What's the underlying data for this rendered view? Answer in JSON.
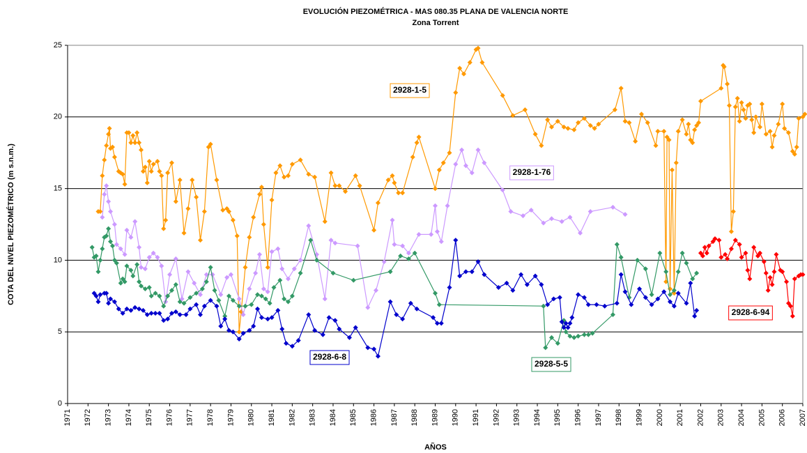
{
  "chart_data": {
    "type": "line",
    "title": "EVOLUCIÓN PIEZOMÉTRICA - MAS 080.35 PLANA DE VALENCIA NORTE",
    "subtitle": "Zona Torrent",
    "x_label": "AÑOS",
    "y_label": "COTA DEL NIVEL PIEZOMÉTRICO (m s.n.m.)",
    "xlim": [
      1971,
      2007
    ],
    "xticks": [
      1971,
      1972,
      1973,
      1974,
      1975,
      1976,
      1977,
      1978,
      1979,
      1980,
      1981,
      1982,
      1983,
      1984,
      1985,
      1986,
      1987,
      1988,
      1989,
      1990,
      1991,
      1992,
      1993,
      1994,
      1995,
      1996,
      1997,
      1998,
      1999,
      2000,
      2001,
      2002,
      2003,
      2004,
      2005,
      2006,
      2007
    ],
    "ylim": [
      0,
      25
    ],
    "yticks": [
      0,
      5,
      10,
      15,
      20,
      25
    ],
    "grid": true,
    "series": [
      {
        "name": "2928-1-5",
        "color": "#ff9900",
        "x": [
          1972.5,
          1972.6,
          1972.7,
          1972.8,
          1972.9,
          1973.0,
          1973.05,
          1973.1,
          1973.2,
          1973.3,
          1973.5,
          1973.6,
          1973.7,
          1973.8,
          1973.9,
          1974.0,
          1974.1,
          1974.2,
          1974.3,
          1974.4,
          1974.5,
          1974.6,
          1974.7,
          1974.8,
          1974.9,
          1975.0,
          1975.1,
          1975.2,
          1975.4,
          1975.5,
          1975.6,
          1975.7,
          1975.8,
          1975.9,
          1976.1,
          1976.3,
          1976.5,
          1976.7,
          1976.9,
          1977.1,
          1977.3,
          1977.5,
          1977.7,
          1977.9,
          1978.0,
          1978.3,
          1978.6,
          1978.8,
          1978.9,
          1979.1,
          1979.3,
          1979.4,
          1979.5,
          1979.7,
          1979.9,
          1980.1,
          1980.4,
          1980.5,
          1980.6,
          1980.8,
          1981.0,
          1981.2,
          1981.4,
          1981.6,
          1981.8,
          1982.0,
          1982.4,
          1982.8,
          1983.1,
          1983.6,
          1983.9,
          1984.1,
          1984.3,
          1984.6,
          1985.1,
          1985.3,
          1986.0,
          1986.2,
          1986.7,
          1986.9,
          1987.0,
          1987.2,
          1987.4,
          1987.9,
          1988.1,
          1988.2,
          1989.0,
          1989.2,
          1989.4,
          1989.7,
          1990.0,
          1990.2,
          1990.4,
          1990.7,
          1991.0,
          1991.1,
          1991.3,
          1992.3,
          1992.8,
          1993.4,
          1993.9,
          1994.2,
          1994.5,
          1994.7,
          1995.0,
          1995.3,
          1995.5,
          1995.8,
          1996.0,
          1996.3,
          1996.6,
          1996.8,
          1997.0,
          1997.8,
          1998.1,
          1998.3,
          1998.5,
          1998.8,
          1999.1,
          1999.4,
          1999.8,
          1999.9,
          2000.2,
          2000.3,
          2000.35,
          2000.45,
          2000.5,
          2000.6,
          2000.7,
          2000.8,
          2000.9,
          2001.1,
          2001.3,
          2001.4,
          2001.5,
          2001.6,
          2001.7,
          2001.8,
          2001.9,
          2002.0,
          2003.0,
          2003.1,
          2003.15,
          2003.3,
          2003.4,
          2003.5,
          2003.6,
          2003.7,
          2003.8,
          2003.9,
          2004.0,
          2004.1,
          2004.2,
          2004.3,
          2004.4,
          2004.5,
          2004.6,
          2004.7,
          2004.9,
          2005.0,
          2005.2,
          2005.4,
          2005.5,
          2005.6,
          2005.8,
          2006.0,
          2006.1,
          2006.3,
          2006.5,
          2006.6,
          2006.7,
          2006.8,
          2007.0,
          2007.1
        ],
        "values": [
          13.4,
          13.4,
          15.9,
          17,
          18,
          18.8,
          19.2,
          17.8,
          17.9,
          17.2,
          16.2,
          16.1,
          16,
          15.3,
          18.9,
          18.9,
          18.2,
          18.7,
          18.2,
          18.9,
          18.2,
          17.7,
          16.2,
          16.5,
          15.4,
          16.9,
          16.2,
          16.7,
          16.9,
          16.2,
          15.9,
          12.2,
          12.8,
          16.1,
          16.8,
          14.1,
          15.6,
          11.9,
          13.6,
          15.6,
          14.4,
          11.4,
          13.4,
          17.9,
          18.1,
          15.6,
          13.5,
          13.6,
          13.4,
          12.8,
          11.7,
          5.0,
          6.4,
          9.5,
          11.6,
          13.0,
          14.6,
          15.1,
          12.5,
          9.5,
          14.2,
          16.1,
          16.6,
          15.8,
          15.9,
          16.7,
          17.0,
          16.0,
          15.8,
          12.7,
          16.1,
          15.2,
          15.2,
          14.8,
          15.9,
          15.2,
          12.1,
          14.0,
          15.6,
          15.9,
          15.4,
          14.7,
          14.7,
          17.2,
          18.2,
          18.6,
          15.0,
          16.3,
          16.8,
          17.5,
          21.7,
          23.4,
          23.0,
          23.8,
          24.7,
          24.8,
          23.8,
          21.5,
          20.1,
          20.5,
          18.8,
          18.0,
          19.8,
          19.3,
          19.7,
          19.3,
          19.2,
          19.1,
          19.6,
          19.9,
          19.4,
          19.2,
          19.5,
          20.5,
          22.0,
          19.7,
          19.6,
          18.3,
          20.2,
          19.6,
          18.0,
          19.0,
          19.0,
          8.5,
          18.6,
          18.4,
          8.0,
          16.3,
          7.7,
          16.8,
          19.0,
          19.8,
          18.8,
          19.5,
          18.4,
          18.2,
          19.1,
          19.4,
          19.6,
          21.1,
          22.0,
          23.6,
          23.5,
          22.3,
          20.8,
          12.0,
          13.4,
          20.7,
          21.3,
          19.7,
          21.0,
          20.5,
          19.9,
          20.8,
          20.9,
          19.8,
          18.9,
          20.0,
          19.3,
          20.9,
          18.8,
          19.0,
          17.9,
          18.7,
          19.5,
          20.9,
          19.2,
          18.9,
          17.6,
          17.4,
          17.9,
          19.9,
          20.0,
          20.2
        ]
      },
      {
        "name": "2928-1-76",
        "color": "#cc99ff",
        "x": [
          1972.7,
          1972.8,
          1972.9,
          1973.0,
          1973.1,
          1973.3,
          1973.4,
          1973.6,
          1973.8,
          1973.9,
          1974.1,
          1974.3,
          1974.5,
          1974.6,
          1974.8,
          1975.0,
          1975.2,
          1975.4,
          1975.6,
          1975.8,
          1976.0,
          1976.3,
          1976.6,
          1976.9,
          1977.2,
          1977.5,
          1977.8,
          1978.1,
          1978.5,
          1978.8,
          1979.0,
          1979.4,
          1979.6,
          1979.9,
          1980.2,
          1980.4,
          1980.6,
          1980.8,
          1981.0,
          1981.3,
          1981.5,
          1981.8,
          1982.1,
          1982.4,
          1982.8,
          1983.2,
          1983.6,
          1983.9,
          1984.1,
          1985.2,
          1985.7,
          1986.1,
          1986.5,
          1986.9,
          1987.0,
          1987.4,
          1987.7,
          1988.2,
          1988.8,
          1989.0,
          1989.1,
          1989.3,
          1989.6,
          1990.0,
          1990.3,
          1990.5,
          1990.8,
          1991.1,
          1991.4,
          1992.3,
          1992.7,
          1993.3,
          1993.7,
          1994.3,
          1994.7,
          1995.2,
          1995.6,
          1996.1,
          1996.6,
          1997.7,
          1998.3
        ],
        "values": [
          13,
          14.6,
          15.2,
          14.1,
          13.4,
          12.5,
          11.1,
          10.8,
          10.4,
          12.1,
          11.6,
          12.7,
          10.9,
          9.5,
          9.4,
          10.2,
          10.5,
          10.2,
          9.6,
          7.1,
          9.0,
          10.1,
          7.3,
          9.2,
          8.4,
          7.6,
          9.0,
          9.0,
          7.6,
          8.8,
          9.0,
          7.3,
          6.2,
          8.0,
          9.1,
          10.4,
          8.0,
          7.8,
          10.6,
          10.8,
          9.4,
          8.7,
          9.4,
          10.0,
          12.4,
          10.4,
          7.3,
          11.4,
          11.2,
          11.0,
          6.7,
          7.9,
          9.9,
          12.8,
          11.1,
          11.0,
          10.5,
          11.8,
          11.8,
          13.8,
          12.0,
          11.3,
          13.8,
          16.7,
          17.7,
          16.6,
          16.1,
          17.7,
          16.8,
          14.9,
          13.4,
          13.1,
          13.5,
          12.6,
          12.9,
          12.7,
          13.0,
          11.9,
          13.4,
          13.7,
          13.2
        ]
      },
      {
        "name": "2928-5-5",
        "color": "#339966",
        "x": [
          1972.2,
          1972.3,
          1972.4,
          1972.5,
          1972.6,
          1972.7,
          1972.8,
          1972.9,
          1973.0,
          1973.1,
          1973.2,
          1973.3,
          1973.4,
          1973.6,
          1973.7,
          1973.8,
          1973.9,
          1974.1,
          1974.2,
          1974.4,
          1974.5,
          1974.6,
          1974.8,
          1975.0,
          1975.1,
          1975.3,
          1975.5,
          1975.7,
          1975.9,
          1976.1,
          1976.3,
          1976.5,
          1976.7,
          1977.0,
          1977.3,
          1977.6,
          1977.8,
          1978.0,
          1978.2,
          1978.4,
          1978.7,
          1978.9,
          1979.1,
          1979.4,
          1979.7,
          1980.0,
          1980.3,
          1980.5,
          1980.7,
          1980.9,
          1981.1,
          1981.4,
          1981.6,
          1981.8,
          1982.0,
          1982.4,
          1982.9,
          1983.2,
          1984.0,
          1985.0,
          1986.8,
          1987.3,
          1987.7,
          1988.0,
          1989.0,
          1989.2,
          1994.3,
          1994.4,
          1994.7,
          1995.0,
          1995.3,
          1995.4,
          1995.6,
          1995.8,
          1996.0,
          1996.3,
          1996.5,
          1996.7,
          1997.7,
          1997.9,
          1998.1,
          1998.5,
          1998.9,
          1999.3,
          1999.6,
          2000.0,
          2000.3,
          2000.5,
          2000.7,
          2000.9,
          2001.1,
          2001.3,
          2001.6,
          2001.8
        ],
        "values": [
          10.9,
          10.2,
          10.3,
          9.2,
          10,
          10.8,
          11.6,
          11.7,
          12.2,
          11.3,
          11.0,
          10.0,
          9.8,
          8.4,
          8.7,
          8.5,
          9.6,
          9.3,
          8.9,
          9.7,
          8.5,
          8.2,
          8.0,
          8.1,
          7.5,
          7.7,
          7.5,
          6.8,
          7.5,
          7.9,
          8.3,
          7.1,
          7.0,
          7.4,
          7.7,
          8.0,
          8.5,
          9.5,
          7.9,
          7.2,
          6.1,
          7.5,
          7.2,
          6.8,
          6.8,
          6.9,
          7.6,
          7.5,
          7.3,
          7.0,
          8.1,
          8.6,
          7.3,
          7.1,
          7.5,
          9.1,
          11.4,
          10.0,
          9.1,
          8.6,
          9.2,
          10.3,
          10.1,
          10.5,
          7.7,
          6.9,
          6.8,
          3.9,
          4.6,
          4.2,
          5.8,
          5.0,
          4.7,
          4.6,
          4.7,
          4.8,
          4.8,
          4.9,
          6.2,
          11.1,
          10.2,
          7.4,
          10.0,
          9.4,
          7.6,
          10.5,
          9.2,
          7.6,
          7.9,
          9.2,
          10.5,
          9.8,
          8.7,
          9.1
        ]
      },
      {
        "name": "2928-6-8",
        "color": "#0000cc",
        "x": [
          1972.3,
          1972.4,
          1972.5,
          1972.6,
          1972.8,
          1972.9,
          1973.0,
          1973.1,
          1973.3,
          1973.5,
          1973.7,
          1973.9,
          1974.1,
          1974.3,
          1974.5,
          1974.7,
          1974.9,
          1975.1,
          1975.3,
          1975.5,
          1975.7,
          1975.9,
          1976.1,
          1976.3,
          1976.5,
          1976.8,
          1977.0,
          1977.3,
          1977.5,
          1977.7,
          1978.0,
          1978.3,
          1978.5,
          1978.7,
          1978.9,
          1979.1,
          1979.4,
          1979.6,
          1979.9,
          1980.1,
          1980.3,
          1980.5,
          1980.8,
          1981.0,
          1981.3,
          1981.5,
          1981.7,
          1982.0,
          1982.3,
          1982.8,
          1983.1,
          1983.5,
          1983.8,
          1984.1,
          1984.3,
          1984.8,
          1985.1,
          1985.7,
          1986.0,
          1986.2,
          1986.8,
          1987.1,
          1987.4,
          1987.8,
          1988.1,
          1988.9,
          1989.1,
          1989.3,
          1989.7,
          1990.0,
          1990.2,
          1990.5,
          1990.8,
          1991.1,
          1991.4,
          1992.1,
          1992.5,
          1992.8,
          1993.2,
          1993.5,
          1993.9,
          1994.2,
          1994.5,
          1994.8,
          1995.1,
          1995.2,
          1995.3,
          1995.4,
          1995.5,
          1995.6,
          1995.7,
          1996.0,
          1996.3,
          1996.5,
          1996.9,
          1997.3,
          1997.9,
          1998.1,
          1998.3,
          1998.6,
          1999.0,
          1999.3,
          1999.6,
          1999.9,
          2000.2,
          2000.5,
          2000.7,
          2000.9,
          2001.3,
          2001.5,
          2001.7,
          2001.8
        ],
        "values": [
          7.7,
          7.5,
          7.1,
          7.6,
          7.7,
          7.7,
          7.0,
          7.3,
          7.1,
          6.6,
          6.3,
          6.6,
          6.5,
          6.7,
          6.6,
          6.5,
          6.2,
          6.3,
          6.3,
          6.3,
          5.8,
          5.9,
          6.3,
          6.4,
          6.2,
          6.2,
          6.6,
          6.9,
          6.2,
          6.8,
          7.2,
          6.8,
          5.4,
          5.9,
          5.1,
          5.0,
          4.5,
          4.9,
          5.1,
          5.4,
          6.6,
          6.0,
          5.9,
          6.0,
          6.5,
          5.2,
          4.2,
          4.0,
          4.4,
          6.2,
          5.1,
          4.8,
          6.0,
          5.8,
          5.2,
          4.6,
          5.3,
          3.9,
          3.8,
          3.3,
          7.1,
          6.2,
          5.9,
          7.0,
          6.6,
          6.0,
          5.6,
          5.6,
          8.1,
          11.4,
          8.9,
          9.2,
          9.2,
          9.9,
          9.0,
          8.1,
          8.4,
          7.9,
          9.0,
          8.3,
          8.9,
          8.3,
          6.9,
          7.3,
          7.4,
          5.7,
          5.3,
          5.6,
          5.3,
          5.6,
          6.0,
          7.6,
          7.4,
          6.9,
          6.9,
          6.8,
          7.0,
          9.0,
          7.8,
          6.9,
          8.0,
          7.4,
          6.9,
          7.3,
          7.8,
          7.1,
          6.8,
          7.7,
          7.0,
          8.4,
          6.1,
          6.5
        ]
      },
      {
        "name": "2928-6-94",
        "color": "#ff0000",
        "x": [
          2002.0,
          2002.1,
          2002.2,
          2002.3,
          2002.4,
          2002.6,
          2002.7,
          2002.9,
          2003.0,
          2003.2,
          2003.3,
          2003.5,
          2003.7,
          2003.9,
          2004.0,
          2004.2,
          2004.3,
          2004.4,
          2004.6,
          2004.8,
          2004.9,
          2005.1,
          2005.2,
          2005.3,
          2005.4,
          2005.5,
          2005.6,
          2005.7,
          2005.9,
          2006.0,
          2006.2,
          2006.3,
          2006.4,
          2006.5,
          2006.6,
          2006.8,
          2006.9,
          2007.0
        ],
        "values": [
          10.5,
          10.3,
          10.9,
          10.5,
          11.0,
          11.3,
          11.5,
          11.4,
          10.2,
          10.4,
          10.1,
          10.8,
          11.4,
          11.1,
          10.2,
          10.5,
          9.3,
          8.7,
          10.9,
          10.3,
          10.5,
          9.9,
          9.1,
          7.9,
          8.8,
          8.3,
          9.2,
          10.4,
          9.3,
          9.2,
          8.5,
          7.0,
          6.8,
          6.1,
          8.7,
          8.9,
          9.0,
          9.0
        ]
      }
    ]
  }
}
